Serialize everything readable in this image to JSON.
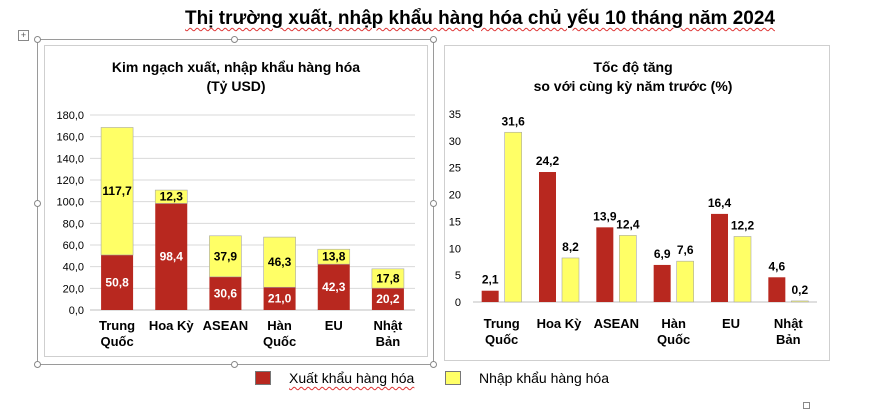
{
  "title": {
    "part1": "Thị trường xuất, nhập khẩu hàng hóa chủ yếu 10 tháng năm 2024"
  },
  "colors": {
    "export": "#b8281f",
    "import": "#ffff66",
    "grid": "#d9d9d9"
  },
  "chart_data": [
    {
      "type": "bar",
      "stacked": true,
      "title": "Kim ngạch xuất, nhập khẩu hàng hóa",
      "subtitle": "(Tỷ USD)",
      "categories": [
        [
          "Trung",
          "Quốc"
        ],
        [
          "Hoa Kỳ"
        ],
        [
          "ASEAN"
        ],
        [
          "Hàn",
          "Quốc"
        ],
        [
          "EU"
        ],
        [
          "Nhật",
          "Bản"
        ]
      ],
      "series": [
        {
          "name": "Xuất khẩu hàng hóa",
          "values": [
            50.8,
            98.4,
            30.6,
            21.0,
            42.3,
            20.2
          ],
          "labels": [
            "50,8",
            "98,4",
            "30,6",
            "21,0",
            "42,3",
            "20,2"
          ]
        },
        {
          "name": "Nhập khẩu hàng hóa",
          "values": [
            117.7,
            12.3,
            37.9,
            46.3,
            13.8,
            17.8
          ],
          "labels": [
            "117,7",
            "12,3",
            "37,9",
            "46,3",
            "13,8",
            "17,8"
          ]
        }
      ],
      "ylim": [
        0,
        180
      ],
      "yticks": [
        "0,0",
        "20,0",
        "40,0",
        "60,0",
        "80,0",
        "100,0",
        "120,0",
        "140,0",
        "160,0",
        "180,0"
      ],
      "grid": true
    },
    {
      "type": "bar",
      "stacked": false,
      "title": "Tốc độ tăng",
      "subtitle": "so với cùng kỳ năm trước (%)",
      "categories": [
        [
          "Trung",
          "Quốc"
        ],
        [
          "Hoa Kỳ"
        ],
        [
          "ASEAN"
        ],
        [
          "Hàn",
          "Quốc"
        ],
        [
          "EU"
        ],
        [
          "Nhật",
          "Bản"
        ]
      ],
      "series": [
        {
          "name": "Xuất khẩu hàng hóa",
          "values": [
            2.1,
            24.2,
            13.9,
            6.9,
            16.4,
            4.6
          ],
          "labels": [
            "2,1",
            "24,2",
            "13,9",
            "6,9",
            "16,4",
            "4,6"
          ]
        },
        {
          "name": "Nhập khẩu hàng hóa",
          "values": [
            31.6,
            8.2,
            12.4,
            7.6,
            12.2,
            0.2
          ],
          "labels": [
            "31,6",
            "8,2",
            "12,4",
            "7,6",
            "12,2",
            "0,2"
          ]
        }
      ],
      "ylim": [
        0,
        35
      ],
      "yticks": [
        "0",
        "5",
        "10",
        "15",
        "20",
        "25",
        "30",
        "35"
      ],
      "grid": false
    }
  ],
  "legend": {
    "export_label": "Xuất khẩu hàng hóa",
    "import_label": "Nhập khẩu hàng hóa"
  }
}
